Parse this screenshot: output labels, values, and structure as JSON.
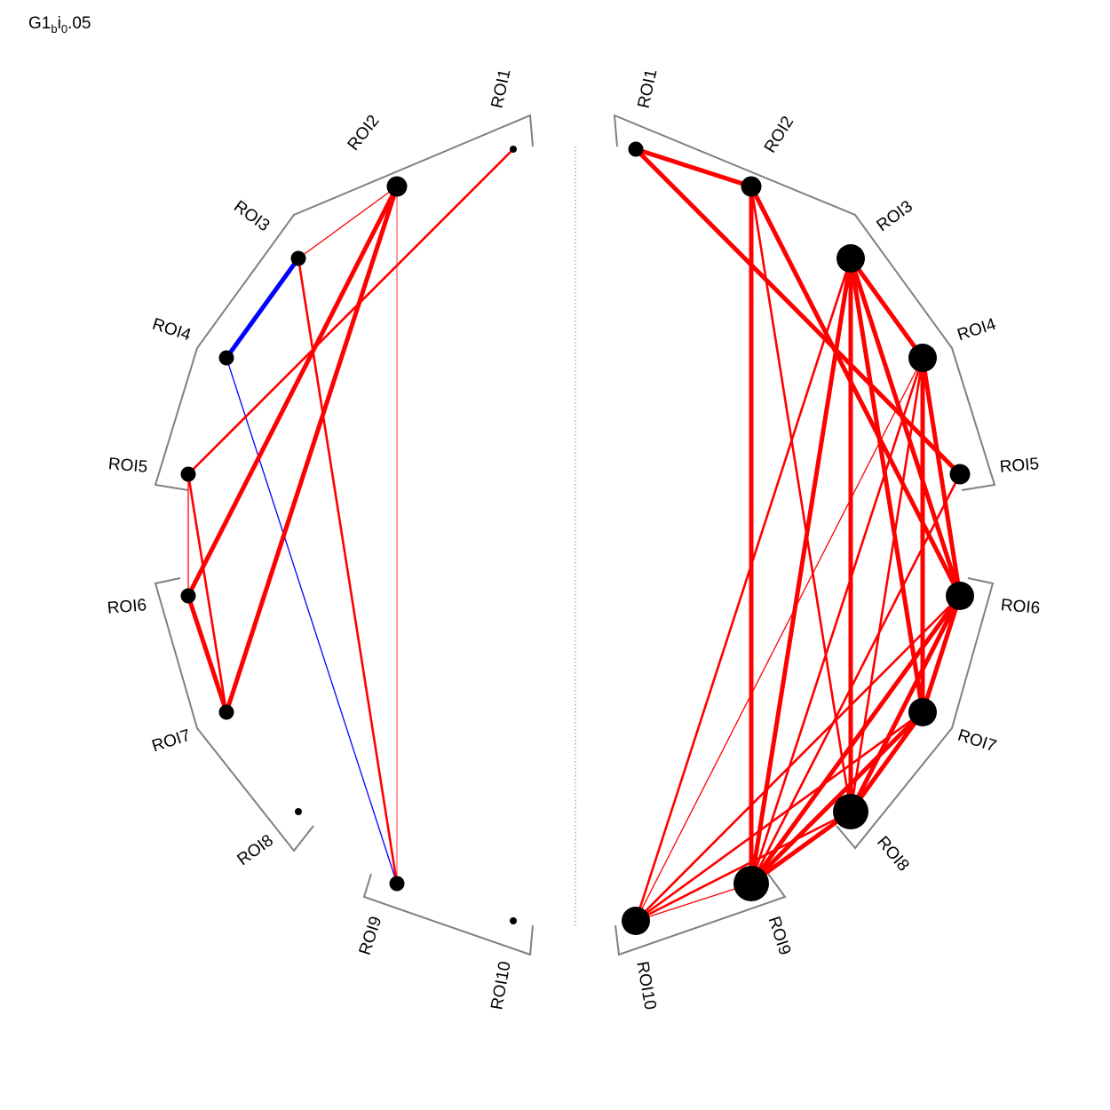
{
  "title": {
    "main": "G1",
    "sub1": "b",
    "mid": "i",
    "sub2": "0",
    "suffix": ".05"
  },
  "roi_labels": [
    "ROI1",
    "ROI2",
    "ROI3",
    "ROI4",
    "ROI5",
    "ROI6",
    "ROI7",
    "ROI8",
    "ROI9",
    "ROI10"
  ],
  "colors": {
    "positive": "#ff0000",
    "negative": "#0000ff",
    "bracket": "#808080",
    "node": "#000000",
    "divider": "#808080"
  },
  "left_hemisphere": {
    "nodes": [
      {
        "roi": "ROI1",
        "size": "tiny"
      },
      {
        "roi": "ROI2",
        "size": "medium"
      },
      {
        "roi": "ROI3",
        "size": "small"
      },
      {
        "roi": "ROI4",
        "size": "small"
      },
      {
        "roi": "ROI5",
        "size": "small"
      },
      {
        "roi": "ROI6",
        "size": "small"
      },
      {
        "roi": "ROI7",
        "size": "small"
      },
      {
        "roi": "ROI8",
        "size": "tiny"
      },
      {
        "roi": "ROI9",
        "size": "small"
      },
      {
        "roi": "ROI10",
        "size": "tiny"
      }
    ],
    "edges": [
      {
        "from": "ROI3",
        "to": "ROI4",
        "sign": "negative",
        "strength": "strong"
      },
      {
        "from": "ROI4",
        "to": "ROI9",
        "sign": "negative",
        "strength": "weak"
      },
      {
        "from": "ROI1",
        "to": "ROI5",
        "sign": "positive",
        "strength": "medium"
      },
      {
        "from": "ROI2",
        "to": "ROI3",
        "sign": "positive",
        "strength": "weak"
      },
      {
        "from": "ROI2",
        "to": "ROI6",
        "sign": "positive",
        "strength": "strong"
      },
      {
        "from": "ROI2",
        "to": "ROI7",
        "sign": "positive",
        "strength": "strong"
      },
      {
        "from": "ROI2",
        "to": "ROI9",
        "sign": "positive",
        "strength": "faint"
      },
      {
        "from": "ROI3",
        "to": "ROI9",
        "sign": "positive",
        "strength": "medium"
      },
      {
        "from": "ROI5",
        "to": "ROI6",
        "sign": "positive",
        "strength": "weak"
      },
      {
        "from": "ROI5",
        "to": "ROI7",
        "sign": "positive",
        "strength": "medium"
      },
      {
        "from": "ROI6",
        "to": "ROI7",
        "sign": "positive",
        "strength": "strong"
      }
    ]
  },
  "right_hemisphere": {
    "nodes": [
      {
        "roi": "ROI1",
        "size": "small"
      },
      {
        "roi": "ROI2",
        "size": "medium"
      },
      {
        "roi": "ROI3",
        "size": "large"
      },
      {
        "roi": "ROI4",
        "size": "large"
      },
      {
        "roi": "ROI5",
        "size": "medium"
      },
      {
        "roi": "ROI6",
        "size": "large"
      },
      {
        "roi": "ROI7",
        "size": "large"
      },
      {
        "roi": "ROI8",
        "size": "xlarge"
      },
      {
        "roi": "ROI9",
        "size": "xlarge"
      },
      {
        "roi": "ROI10",
        "size": "large"
      }
    ],
    "edges": [
      {
        "from": "ROI1",
        "to": "ROI2",
        "sign": "positive",
        "strength": "strong"
      },
      {
        "from": "ROI1",
        "to": "ROI5",
        "sign": "positive",
        "strength": "strong"
      },
      {
        "from": "ROI2",
        "to": "ROI6",
        "sign": "positive",
        "strength": "strong"
      },
      {
        "from": "ROI2",
        "to": "ROI8",
        "sign": "positive",
        "strength": "medium"
      },
      {
        "from": "ROI2",
        "to": "ROI9",
        "sign": "positive",
        "strength": "strong"
      },
      {
        "from": "ROI3",
        "to": "ROI4",
        "sign": "positive",
        "strength": "strong"
      },
      {
        "from": "ROI3",
        "to": "ROI6",
        "sign": "positive",
        "strength": "strong"
      },
      {
        "from": "ROI3",
        "to": "ROI7",
        "sign": "positive",
        "strength": "strong"
      },
      {
        "from": "ROI3",
        "to": "ROI8",
        "sign": "positive",
        "strength": "strong"
      },
      {
        "from": "ROI3",
        "to": "ROI9",
        "sign": "positive",
        "strength": "strong"
      },
      {
        "from": "ROI3",
        "to": "ROI10",
        "sign": "positive",
        "strength": "medium"
      },
      {
        "from": "ROI4",
        "to": "ROI6",
        "sign": "positive",
        "strength": "strong"
      },
      {
        "from": "ROI4",
        "to": "ROI7",
        "sign": "positive",
        "strength": "strong"
      },
      {
        "from": "ROI4",
        "to": "ROI8",
        "sign": "positive",
        "strength": "medium"
      },
      {
        "from": "ROI4",
        "to": "ROI9",
        "sign": "positive",
        "strength": "medium"
      },
      {
        "from": "ROI4",
        "to": "ROI10",
        "sign": "positive",
        "strength": "weak"
      },
      {
        "from": "ROI5",
        "to": "ROI9",
        "sign": "positive",
        "strength": "medium"
      },
      {
        "from": "ROI6",
        "to": "ROI7",
        "sign": "positive",
        "strength": "strong"
      },
      {
        "from": "ROI6",
        "to": "ROI8",
        "sign": "positive",
        "strength": "strong"
      },
      {
        "from": "ROI6",
        "to": "ROI9",
        "sign": "positive",
        "strength": "strong"
      },
      {
        "from": "ROI6",
        "to": "ROI10",
        "sign": "positive",
        "strength": "medium"
      },
      {
        "from": "ROI7",
        "to": "ROI8",
        "sign": "positive",
        "strength": "strong"
      },
      {
        "from": "ROI7",
        "to": "ROI9",
        "sign": "positive",
        "strength": "strong"
      },
      {
        "from": "ROI7",
        "to": "ROI10",
        "sign": "positive",
        "strength": "medium"
      },
      {
        "from": "ROI8",
        "to": "ROI9",
        "sign": "positive",
        "strength": "strong"
      },
      {
        "from": "ROI8",
        "to": "ROI10",
        "sign": "positive",
        "strength": "medium"
      },
      {
        "from": "ROI9",
        "to": "ROI10",
        "sign": "positive",
        "strength": "weak"
      }
    ]
  }
}
